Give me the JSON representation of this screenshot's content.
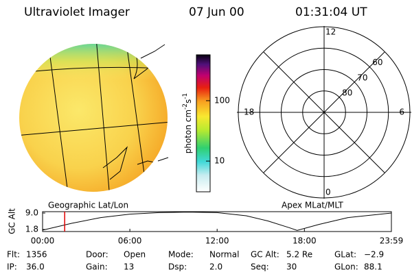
{
  "header": {
    "title": "Ultraviolet Imager",
    "date": "07 Jun 00",
    "time": "01:31:04 UT"
  },
  "globe": {
    "caption": "Geographic Lat/Lon"
  },
  "colorbar": {
    "label": [
      "photon cm",
      "-2",
      "s",
      "-1"
    ],
    "log": true,
    "lim": [
      3.1,
      575
    ],
    "ticks": [
      10,
      100
    ]
  },
  "polar": {
    "caption": "Apex MLat/MLT",
    "mlat_lim": [
      90,
      50
    ],
    "mlat_ticks": [
      80,
      70,
      60
    ],
    "mlt_ticks": [
      12,
      18,
      6,
      0
    ]
  },
  "alt_plot": {
    "ylabel": "GC Alt",
    "ylim": [
      0.9,
      9.6
    ],
    "yticks": [
      {
        "value": 9.0,
        "label": "9.0"
      },
      1.8
    ],
    "xlim": [
      0,
      23.98
    ],
    "xticks": [
      {
        "value": 0,
        "label": "00:00"
      },
      {
        "value": 6,
        "label": "06:00"
      },
      {
        "value": 12,
        "label": "12:00"
      },
      {
        "value": 18,
        "label": "18:00"
      },
      {
        "value": 23.98,
        "label": "23:59"
      }
    ],
    "x": [
      0,
      2,
      4,
      6,
      8,
      10,
      12,
      14,
      15.5,
      17,
      17.5,
      19,
      21,
      23.98
    ],
    "values": [
      1.5,
      4.5,
      7,
      8.5,
      9.2,
      9.4,
      9.2,
      7.8,
      5.5,
      2.5,
      1.4,
      4,
      7,
      9.0
    ],
    "marker_x": 1.52,
    "color": "#000000",
    "marker_color": "#e00000"
  },
  "footer": {
    "rows": [
      [
        {
          "label": "Flt:",
          "value": "1356"
        },
        {
          "label": "Door:",
          "value": "Open"
        },
        {
          "label": "Mode:",
          "value": "Normal"
        },
        {
          "label": "GC Alt:",
          "value": "5.2 Re"
        },
        {
          "label": "GLat:",
          "value": "−2.9"
        }
      ],
      [
        {
          "label": "IP:",
          "value": "36.0"
        },
        {
          "label": "Gain:",
          "value": "13"
        },
        {
          "label": "Dsp:",
          "value": "2.0"
        },
        {
          "label": "Seq:",
          "value": "30"
        },
        {
          "label": "GLon:",
          "value": "88.1"
        }
      ]
    ]
  }
}
